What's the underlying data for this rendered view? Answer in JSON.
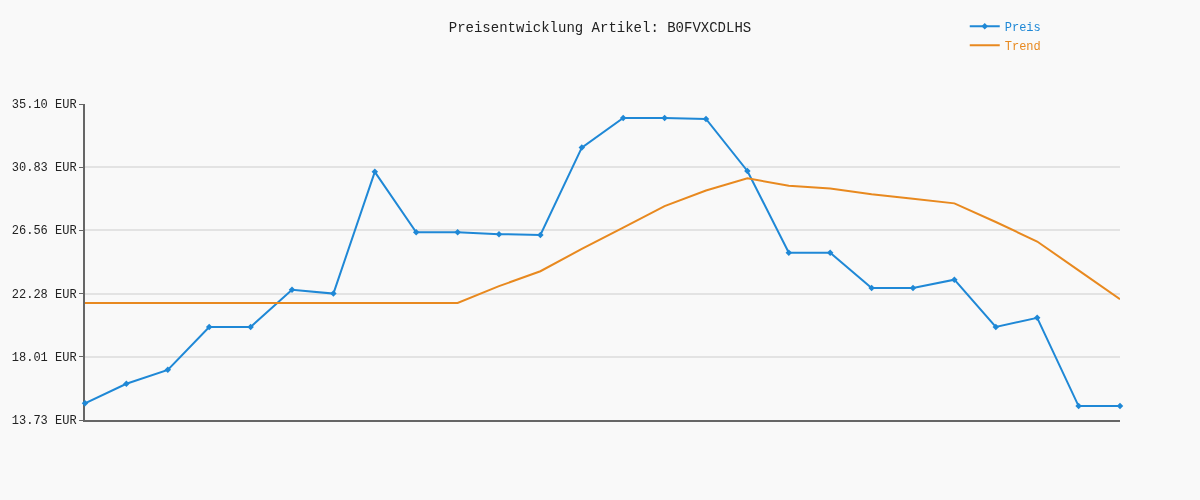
{
  "chart_data": {
    "type": "line",
    "title": "Preisentwicklung Artikel: B0FVXCDLHS",
    "categories": [
      null,
      null,
      null,
      null,
      null,
      null,
      null,
      null,
      null,
      null,
      null,
      null,
      null,
      null,
      null,
      null,
      null,
      null,
      null,
      null,
      null,
      null,
      null,
      null,
      null,
      null
    ],
    "series": [
      {
        "name": "Preis",
        "color": "#1f88d6",
        "marker": "diamond",
        "values": [
          14.86,
          16.18,
          17.12,
          20.02,
          20.02,
          22.53,
          22.28,
          30.51,
          26.43,
          26.43,
          26.3,
          26.24,
          32.15,
          34.16,
          34.16,
          34.09,
          30.57,
          25.04,
          25.04,
          22.66,
          22.66,
          23.22,
          20.02,
          20.64,
          14.67,
          14.67
        ]
      },
      {
        "name": "Trend",
        "color": "#e8891f",
        "marker": "none",
        "values": [
          21.65,
          21.65,
          21.65,
          21.65,
          21.65,
          21.65,
          21.65,
          21.65,
          21.65,
          21.65,
          22.78,
          23.79,
          25.3,
          26.74,
          28.19,
          29.25,
          30.07,
          29.57,
          29.38,
          29.0,
          28.69,
          28.38,
          27.12,
          25.8,
          23.85,
          21.9
        ]
      }
    ],
    "ylim": [
      13.73,
      35.1
    ],
    "yticks": [
      {
        "value": 13.73,
        "label": "13.73 EUR"
      },
      {
        "value": 18.01,
        "label": "18.01 EUR"
      },
      {
        "value": 22.28,
        "label": "22.28 EUR"
      },
      {
        "value": 26.56,
        "label": "26.56 EUR"
      },
      {
        "value": 30.83,
        "label": "30.83 EUR"
      },
      {
        "value": 35.1,
        "label": "35.10 EUR"
      }
    ],
    "grid": "y",
    "legend": "top right",
    "tick_labels": "y",
    "line_style": "solid"
  }
}
